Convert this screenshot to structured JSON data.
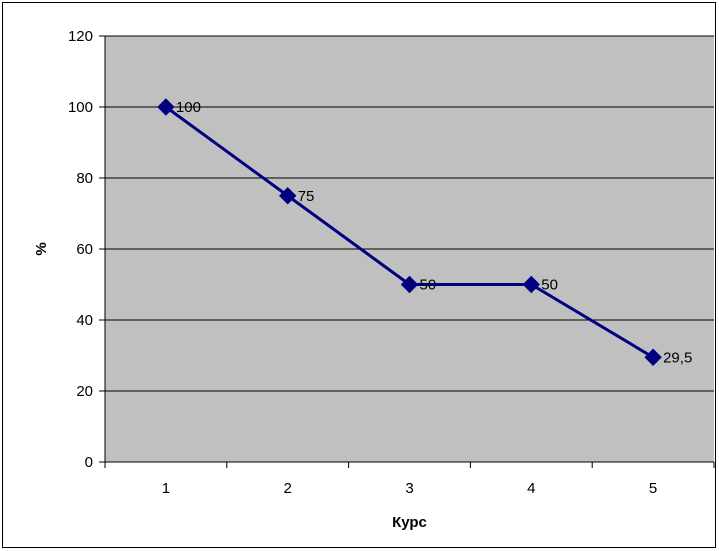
{
  "chart_data": {
    "type": "line",
    "categories": [
      "1",
      "2",
      "3",
      "4",
      "5"
    ],
    "x": [
      1,
      2,
      3,
      4,
      5
    ],
    "series": [
      {
        "values": [
          100,
          75,
          50,
          50,
          29.5
        ],
        "data_labels": [
          "100",
          "75",
          "50",
          "50",
          "29,5"
        ]
      }
    ],
    "title": "",
    "xlabel": "Курс",
    "ylabel": "%",
    "ylim": [
      0,
      120
    ],
    "yticks": [
      0,
      20,
      40,
      60,
      80,
      100,
      120
    ],
    "ytick_labels": [
      "0",
      "20",
      "40",
      "60",
      "80",
      "100",
      "120"
    ],
    "grid": true,
    "legend": "none",
    "colors": {
      "plot_background": "#c0c0c0",
      "line": "#000080",
      "marker": "#000080",
      "gridline": "#000000"
    },
    "marker": "diamond-icon"
  }
}
